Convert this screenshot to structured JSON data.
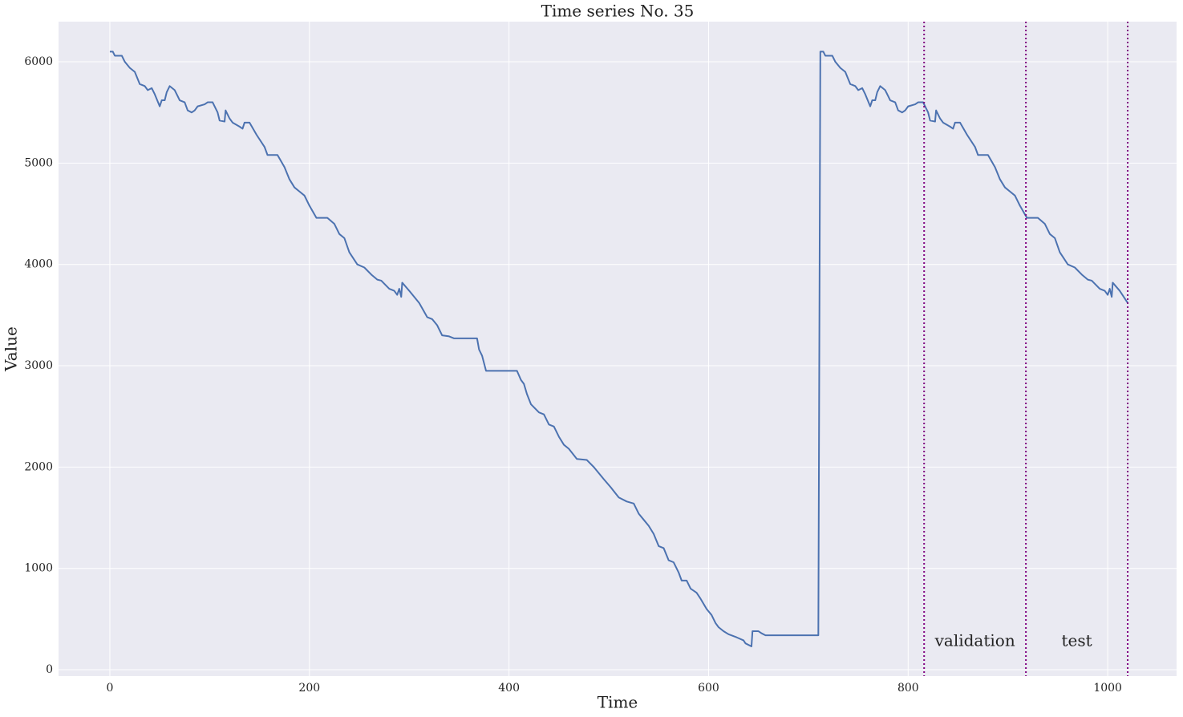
{
  "chart_data": {
    "type": "line",
    "title": "Time series No. 35",
    "x_label": "Time",
    "y_label": "Value",
    "color": "#4c72b0",
    "x": [
      0,
      3,
      5,
      12,
      15,
      20,
      25,
      30,
      35,
      38,
      42,
      45,
      50,
      52,
      55,
      57,
      60,
      65,
      68,
      70,
      75,
      78,
      82,
      85,
      88,
      95,
      98,
      103,
      108,
      110,
      115,
      116,
      120,
      123,
      130,
      133,
      135,
      140,
      147,
      155,
      158,
      168,
      175,
      180,
      185,
      190,
      195,
      200,
      207,
      218,
      225,
      230,
      235,
      240,
      248,
      255,
      262,
      268,
      272,
      280,
      285,
      288,
      290,
      292,
      293,
      300,
      310,
      318,
      323,
      328,
      333,
      340,
      345,
      368,
      370,
      373,
      377,
      408,
      412,
      415,
      418,
      422,
      430,
      435,
      440,
      445,
      450,
      455,
      460,
      468,
      478,
      485,
      495,
      502,
      510,
      518,
      525,
      530,
      535,
      540,
      545,
      550,
      555,
      560,
      565,
      570,
      573,
      578,
      582,
      588,
      592,
      598,
      603,
      607,
      610,
      615,
      620,
      628,
      635,
      637,
      643,
      644,
      650,
      653,
      657,
      710,
      712,
      715,
      717,
      724,
      727,
      732,
      737,
      742,
      747,
      750,
      754,
      757,
      762,
      764,
      767,
      769,
      772,
      777,
      780,
      782,
      787,
      790,
      794,
      797,
      800,
      807,
      810,
      815,
      820,
      822,
      827,
      828,
      832,
      835,
      842,
      845,
      847,
      852,
      859,
      867,
      870,
      880,
      887,
      892,
      897,
      902,
      907,
      912,
      919,
      930,
      937,
      942,
      947,
      952,
      960,
      967,
      974,
      980,
      984,
      992,
      997,
      1000,
      1002,
      1004,
      1005,
      1012,
      1020
    ],
    "values": [
      6100,
      6100,
      6060,
      6060,
      6000,
      5940,
      5900,
      5780,
      5760,
      5720,
      5740,
      5680,
      5560,
      5620,
      5620,
      5700,
      5760,
      5720,
      5660,
      5620,
      5600,
      5520,
      5500,
      5520,
      5560,
      5580,
      5600,
      5600,
      5500,
      5420,
      5410,
      5520,
      5440,
      5400,
      5360,
      5340,
      5400,
      5400,
      5280,
      5160,
      5080,
      5080,
      4960,
      4840,
      4760,
      4720,
      4680,
      4580,
      4460,
      4460,
      4400,
      4300,
      4260,
      4120,
      4000,
      3970,
      3900,
      3850,
      3840,
      3760,
      3740,
      3700,
      3760,
      3680,
      3820,
      3740,
      3620,
      3480,
      3460,
      3400,
      3300,
      3290,
      3270,
      3270,
      3160,
      3100,
      2950,
      2950,
      2860,
      2820,
      2720,
      2620,
      2540,
      2520,
      2420,
      2400,
      2300,
      2220,
      2180,
      2080,
      2070,
      2000,
      1880,
      1800,
      1700,
      1660,
      1640,
      1540,
      1480,
      1420,
      1340,
      1220,
      1200,
      1080,
      1060,
      960,
      880,
      880,
      800,
      760,
      700,
      600,
      540,
      460,
      420,
      380,
      350,
      320,
      290,
      260,
      230,
      380,
      380,
      360,
      340,
      340,
      6100,
      6100,
      6060,
      6060,
      6000,
      5940,
      5900,
      5780,
      5760,
      5720,
      5740,
      5680,
      5560,
      5620,
      5620,
      5700,
      5760,
      5720,
      5660,
      5620,
      5600,
      5520,
      5500,
      5520,
      5560,
      5580,
      5600,
      5600,
      5500,
      5420,
      5410,
      5520,
      5440,
      5400,
      5360,
      5340,
      5400,
      5400,
      5280,
      5160,
      5080,
      5080,
      4960,
      4840,
      4760,
      4720,
      4680,
      4580,
      4460,
      4460,
      4400,
      4300,
      4260,
      4120,
      4000,
      3970,
      3900,
      3850,
      3840,
      3760,
      3740,
      3700,
      3760,
      3680,
      3820,
      3740,
      3620
    ],
    "xlim": [
      -51.4,
      1069
    ],
    "ylim": [
      -63,
      6396
    ],
    "xticks": [
      0,
      200,
      400,
      600,
      800,
      1000
    ],
    "yticks": [
      0,
      1000,
      2000,
      3000,
      4000,
      5000,
      6000
    ],
    "grid": true,
    "vlines": [
      816,
      918,
      1020
    ],
    "vline_color": "#800080",
    "annotations": [
      {
        "text": "validation"
      },
      {
        "text": "test"
      }
    ]
  }
}
